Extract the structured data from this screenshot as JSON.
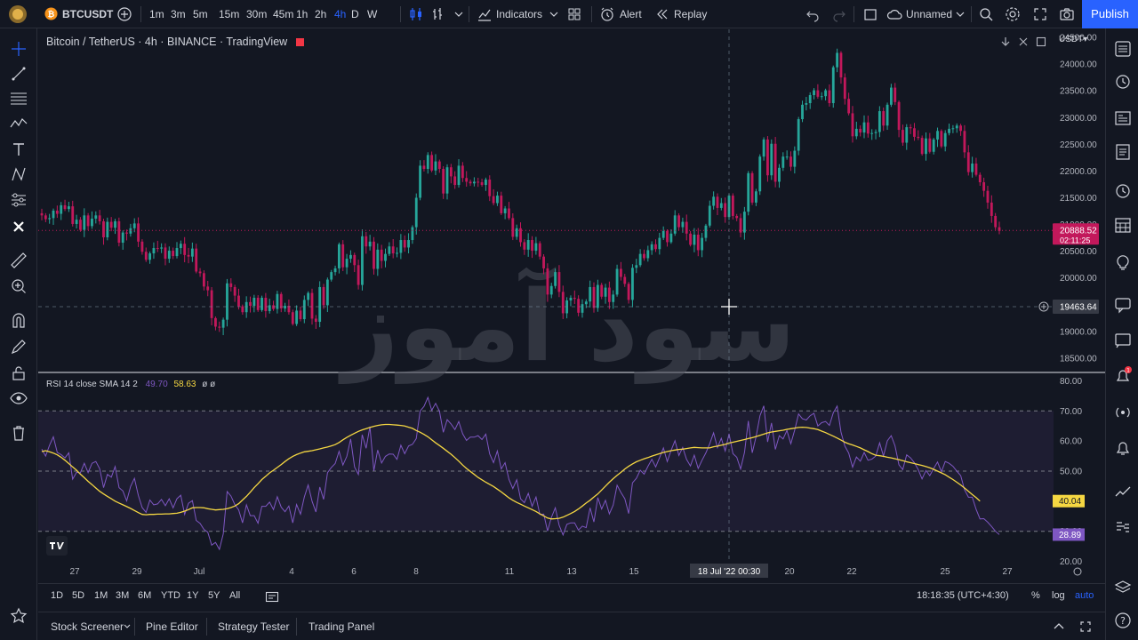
{
  "top_toolbar": {
    "symbol": "BTCUSDT",
    "timeframes": [
      "1m",
      "3m",
      "5m",
      "15m",
      "30m",
      "45m",
      "1h",
      "2h",
      "4h",
      "D",
      "W"
    ],
    "active_timeframe": "4h",
    "indicators_label": "Indicators",
    "alert_label": "Alert",
    "replay_label": "Replay",
    "layout_name": "Unnamed",
    "publish_label": "Publish"
  },
  "chart_legend": {
    "title": "Bitcoin / TetherUS · 4h · BINANCE · TradingView",
    "rsi_label": "RSI 14 close SMA 14 2",
    "rsi_value": "49.70",
    "rsi_sma_value": "58.63",
    "rsi_extra": "ø ø"
  },
  "watermark_text": "سود آموز",
  "price_axis": {
    "currency": "USDT",
    "ticks": [
      "24500.00",
      "24000.00",
      "23500.00",
      "23000.00",
      "22500.00",
      "22000.00",
      "21500.00",
      "21000.00",
      "20500.00",
      "20000.00",
      "19500.00",
      "19000.00",
      "18500.00"
    ],
    "last_price": "20888.52",
    "countdown": "02:11:25",
    "crosshair_price": "19463.64"
  },
  "rsi_axis": {
    "ticks": [
      "80.00",
      "70.00",
      "60.00",
      "50.00",
      "30.00",
      "20.00"
    ],
    "sma_badge": "40.04",
    "rsi_badge": "28.89"
  },
  "time_axis": {
    "labels": [
      "27",
      "29",
      "Jul",
      "4",
      "6",
      "8",
      "11",
      "13",
      "15",
      "20",
      "22",
      "25",
      "27"
    ],
    "crosshair_label": "18 Jul '22   00:30"
  },
  "bottom_bar": {
    "ranges": [
      "1D",
      "5D",
      "1M",
      "3M",
      "6M",
      "YTD",
      "1Y",
      "5Y",
      "All"
    ],
    "clock": "18:18:35 (UTC+4:30)",
    "percent_label": "%",
    "log_label": "log",
    "auto_label": "auto"
  },
  "panel_tabs": [
    "Stock Screener",
    "Pine Editor",
    "Strategy Tester",
    "Trading Panel"
  ],
  "colors": {
    "background": "#131722",
    "up": "#26a69a",
    "down": "#c2185b",
    "rsi": "#7e57c2",
    "rsi_sma": "#f5d742",
    "accent": "#2962ff"
  },
  "chart_data": {
    "type": "candlestick",
    "title": "Bitcoin / TetherUS · 4h · BINANCE · TradingView",
    "ylim": [
      18250,
      24650
    ],
    "close": [
      21170,
      21100,
      21120,
      21260,
      21200,
      21360,
      21290,
      21340,
      21010,
      21090,
      20900,
      21170,
      20970,
      21110,
      21170,
      21060,
      20760,
      21050,
      20940,
      21060,
      20660,
      20850,
      20830,
      20930,
      21020,
      20680,
      20490,
      20340,
      20460,
      20560,
      20550,
      20570,
      20360,
      20510,
      20410,
      20560,
      20640,
      20430,
      20400,
      20550,
      20120,
      20090,
      19840,
      19770,
      19250,
      19090,
      19070,
      19220,
      19900,
      19830,
      19670,
      19470,
      19360,
      19550,
      19480,
      19630,
      19400,
      19630,
      19380,
      19490,
      19420,
      19700,
      19430,
      19480,
      19360,
      19140,
      19390,
      19230,
      19590,
      19720,
      19240,
      19180,
      19830,
      19490,
      19970,
      20110,
      20180,
      20630,
      20200,
      20360,
      20430,
      20240,
      19870,
      20780,
      20590,
      20680,
      20170,
      20530,
      20320,
      20450,
      20590,
      20460,
      20470,
      20710,
      20570,
      20710,
      20950,
      21500,
      22100,
      22040,
      22300,
      22010,
      22180,
      22040,
      21580,
      22070,
      21900,
      21740,
      22100,
      21870,
      21800,
      21770,
      21800,
      21790,
      21740,
      21840,
      21530,
      21400,
      21540,
      21210,
      21300,
      21120,
      20770,
      20930,
      20670,
      20530,
      20710,
      20510,
      20650,
      20400,
      20180,
      19690,
      19850,
      20110,
      19740,
      19340,
      19580,
      19630,
      19610,
      19350,
      19510,
      19560,
      19830,
      19440,
      19870,
      19650,
      19820,
      19550,
      19690,
      20170,
      20020,
      19890,
      19590,
      20190,
      20240,
      20450,
      20370,
      20520,
      20630,
      20540,
      20750,
      20880,
      20670,
      20830,
      21170,
      20950,
      21050,
      20830,
      20620,
      20810,
      20520,
      20750,
      20980,
      21350,
      21520,
      21310,
      21400,
      21140,
      21540,
      21160,
      21120,
      20850,
      21240,
      21960,
      21410,
      21620,
      22270,
      22590,
      21920,
      22510,
      21800,
      22060,
      22270,
      22270,
      22080,
      22380,
      22970,
      23240,
      23270,
      23420,
      23510,
      23390,
      23400,
      23510,
      23270,
      23940,
      24210,
      23750,
      23350,
      23080,
      22650,
      22790,
      22720,
      22910,
      22700,
      22710,
      22730,
      23120,
      22850,
      23240,
      23560,
      23290,
      22770,
      22530,
      22820,
      22800,
      22640,
      22620,
      22320,
      22610,
      22360,
      22590,
      22750,
      22460,
      22710,
      22790,
      22800,
      22850,
      22750,
      22350,
      21980,
      22140,
      21930,
      21790,
      21630,
      21410,
      21160,
      20950,
      20880
    ],
    "rsi_ylim": [
      17.5,
      82.5
    ],
    "rsi": [
      57.3,
      55.0,
      58.6,
      61.4,
      56.2,
      55.5,
      54.4,
      56.1,
      47.3,
      49.6,
      49.4,
      52.6,
      49.5,
      52.6,
      53.2,
      50.8,
      44.5,
      48.9,
      48.0,
      51.5,
      44.5,
      43.4,
      40.1,
      44.9,
      47.6,
      41.9,
      37.9,
      36.3,
      40.4,
      38.8,
      39.1,
      40.6,
      38.5,
      40.8,
      37.8,
      40.8,
      42.0,
      35.6,
      39.3,
      40.2,
      33.6,
      32.6,
      30.6,
      29.7,
      25.4,
      26.3,
      24.0,
      29.1,
      43.2,
      41.7,
      38.9,
      37.1,
      32.8,
      38.8,
      35.2,
      35.2,
      32.7,
      38.3,
      38.3,
      39.7,
      37.2,
      41.5,
      38.0,
      36.5,
      38.4,
      32.8,
      38.9,
      35.7,
      41.4,
      45.4,
      40.0,
      36.4,
      44.7,
      40.6,
      49.5,
      51.2,
      52.5,
      56.6,
      52.0,
      54.9,
      60.7,
      51.4,
      48.9,
      62.1,
      57.6,
      64.8,
      50.1,
      57.0,
      52.7,
      54.9,
      55.7,
      55.6,
      53.9,
      58.6,
      55.8,
      58.4,
      58.9,
      60.8,
      70.0,
      71.5,
      74.5,
      70.2,
      72.5,
      69.9,
      62.9,
      67.1,
      65.7,
      63.8,
      66.5,
      62.4,
      60.2,
      61.3,
      61.3,
      61.8,
      60.5,
      62.3,
      55.7,
      52.8,
      56.7,
      50.7,
      52.8,
      47.2,
      44.2,
      47.1,
      40.8,
      39.5,
      42.6,
      38.3,
      41.4,
      35.6,
      35.7,
      30.1,
      34.6,
      37.8,
      32.0,
      28.8,
      32.3,
      32.8,
      32.8,
      30.4,
      31.7,
      31.2,
      37.8,
      33.1,
      41.2,
      37.4,
      40.3,
      35.8,
      38.7,
      45.3,
      42.9,
      40.8,
      35.9,
      46.1,
      47.6,
      50.3,
      49.0,
      51.6,
      53.9,
      51.4,
      54.4,
      57.7,
      53.2,
      56.9,
      60.1,
      55.2,
      57.9,
      53.9,
      51.7,
      55.3,
      50.9,
      53.6,
      56.1,
      59.1,
      62.7,
      57.8,
      60.9,
      56.7,
      62.4,
      55.8,
      54.6,
      50.7,
      56.2,
      66.7,
      56.1,
      61.4,
      68.4,
      71.7,
      59.7,
      66.0,
      57.2,
      61.8,
      60.7,
      63.5,
      59.1,
      63.6,
      69.0,
      67.4,
      67.0,
      68.4,
      69.2,
      65.0,
      66.1,
      66.5,
      65.2,
      69.4,
      71.6,
      63.0,
      58.3,
      56.0,
      51.3,
      54.7,
      53.3,
      56.2,
      53.6,
      54.0,
      55.0,
      59.4,
      55.0,
      60.1,
      61.8,
      58.4,
      52.1,
      50.5,
      55.4,
      54.4,
      52.8,
      50.5,
      47.4,
      50.2,
      48.5,
      50.9,
      53.0,
      49.8,
      53.2,
      52.6,
      51.6,
      50.0,
      48.5,
      43.8,
      41.3,
      41.3,
      37.3,
      34.1,
      34.2,
      33.0,
      31.6,
      30.0,
      28.9
    ],
    "rsi_sma": [
      56.5,
      56.8,
      56.4,
      56.0,
      55.4,
      54.6,
      53.6,
      52.5,
      51.4,
      50.3,
      49.0,
      47.8,
      46.6,
      45.5,
      44.4,
      43.3,
      42.4,
      41.6,
      40.8,
      40.0,
      39.4,
      38.8,
      38.2,
      37.6,
      36.9,
      36.2,
      35.6,
      35.5,
      35.6,
      35.6,
      35.7,
      35.7,
      35.8,
      35.8,
      35.9,
      36.0,
      36.3,
      36.7,
      37.2,
      37.8,
      37.9,
      37.9,
      37.8,
      37.5,
      37.3,
      37.1,
      37.2,
      37.3,
      37.5,
      37.9,
      38.4,
      39.2,
      40.4,
      41.6,
      43.0,
      44.5,
      45.8,
      47.2,
      48.3,
      49.4,
      50.3,
      51.2,
      52.2,
      53.2,
      54.1,
      54.9,
      55.5,
      56.0,
      56.4,
      56.6,
      56.8,
      57.1,
      57.4,
      57.7,
      58.0,
      58.4,
      58.8,
      59.5,
      60.4,
      61.2,
      61.9,
      62.6,
      63.2,
      63.7,
      64.1,
      64.5,
      64.9,
      65.2,
      65.4,
      65.5,
      65.5,
      65.4,
      65.3,
      65.2,
      65.0,
      64.6,
      64.2,
      63.5,
      62.9,
      62.2,
      61.4,
      60.4,
      59.4,
      58.5,
      57.6,
      56.6,
      55.6,
      54.5,
      53.3,
      52.0,
      50.9,
      49.9,
      48.9,
      47.9,
      47.1,
      46.3,
      45.6,
      44.9,
      44.0,
      43.1,
      42.1,
      41.1,
      40.3,
      39.6,
      39.0,
      38.4,
      37.8,
      37.2,
      36.6,
      35.8,
      35.1,
      34.4,
      34.1,
      34.2,
      34.3,
      34.7,
      35.3,
      35.9,
      36.6,
      37.4,
      38.4,
      39.4,
      40.3,
      41.4,
      42.4,
      43.7,
      45.0,
      46.3,
      47.5,
      48.6,
      49.6,
      50.7,
      51.6,
      52.4,
      53.1,
      53.6,
      54.1,
      54.5,
      55.0,
      55.4,
      55.8,
      56.2,
      56.5,
      56.8,
      57.0,
      57.2,
      57.3,
      57.5,
      57.7,
      57.9,
      57.8,
      57.7,
      57.7,
      57.7,
      58.1,
      58.3,
      58.6,
      58.9,
      59.3,
      59.6,
      59.9,
      60.2,
      60.5,
      60.8,
      61.1,
      61.5,
      61.9,
      62.3,
      62.7,
      63.0,
      63.2,
      63.4,
      63.6,
      63.9,
      64.1,
      64.3,
      64.5,
      64.6,
      64.5,
      64.3,
      64.1,
      63.8,
      63.3,
      62.8,
      62.2,
      61.6,
      61.0,
      60.3,
      59.6,
      59.1,
      58.7,
      58.2,
      57.7,
      57.1,
      56.5,
      55.8,
      55.3,
      55.1,
      54.9,
      54.6,
      54.4,
      54.1,
      53.8,
      53.5,
      53.1,
      52.8,
      52.5,
      52.2,
      51.9,
      51.5,
      51.1,
      50.6,
      50.0,
      49.4,
      48.8,
      48.0,
      47.2,
      46.3,
      45.4,
      44.4,
      43.3,
      42.2,
      41.2,
      40.0
    ],
    "series_colors": {
      "up": "#26a69a",
      "down": "#c2185b",
      "rsi": "#7e57c2",
      "rsi_sma": "#f5d742"
    }
  }
}
